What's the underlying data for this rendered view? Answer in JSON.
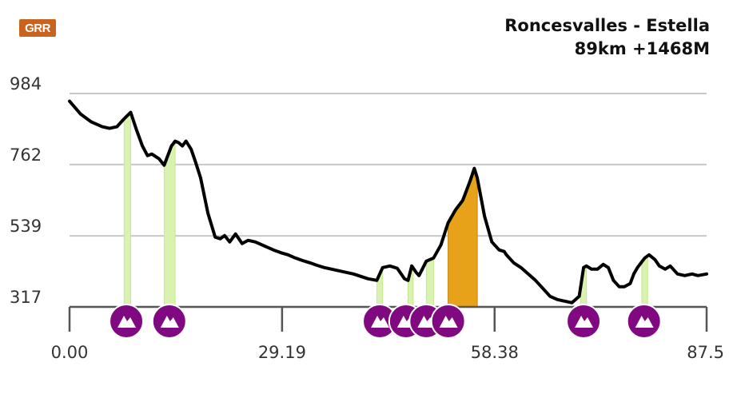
{
  "brand": {
    "logo_text": "GRR"
  },
  "header": {
    "title_line1": "Roncesvalles - Estella",
    "title_line2": "89km +1468M"
  },
  "chart_data": {
    "type": "area",
    "title": "",
    "xlabel": "",
    "ylabel": "",
    "xlim": [
      0,
      87.5
    ],
    "ylim": [
      317,
      984
    ],
    "y_ticks": [
      "317",
      "539",
      "762",
      "984"
    ],
    "x_ticks": [
      "0.00",
      "29.19",
      "58.38",
      "87.5"
    ],
    "grid": "horizontal",
    "profile": {
      "x": [
        0,
        1.5,
        3,
        4.5,
        5.5,
        6.5,
        7.5,
        8.4,
        9.2,
        10,
        10.7,
        11.3,
        12.3,
        13,
        14,
        14.5,
        15,
        15.5,
        16,
        16.7,
        17.3,
        18,
        19,
        20,
        20.7,
        21.3,
        22,
        22.8,
        23.7,
        24.5,
        25.5,
        27,
        28,
        29.2,
        30,
        31,
        32,
        33,
        34,
        35,
        37,
        39,
        41,
        42.2,
        43,
        44,
        45,
        46,
        46.5,
        47,
        47.6,
        48,
        49,
        50,
        51,
        52,
        53,
        54,
        55,
        55.6,
        56,
        57,
        58,
        59,
        59.7,
        60,
        61,
        62,
        63,
        64,
        65,
        66,
        67,
        68,
        69,
        70,
        70.6,
        71,
        71.7,
        72.5,
        73.3,
        74,
        74.7,
        75.5,
        76.2,
        77,
        77.5,
        78,
        78.5,
        79,
        79.6,
        80.4,
        81,
        81.8,
        82.5,
        83.5,
        84.5,
        85.5,
        86.3,
        87.5
      ],
      "y": [
        960,
        920,
        895,
        880,
        875,
        880,
        905,
        925,
        870,
        820,
        790,
        795,
        780,
        760,
        820,
        835,
        830,
        820,
        835,
        810,
        770,
        720,
        610,
        535,
        530,
        540,
        520,
        545,
        515,
        525,
        520,
        505,
        495,
        485,
        480,
        470,
        462,
        455,
        447,
        440,
        430,
        420,
        405,
        400,
        440,
        445,
        438,
        405,
        400,
        445,
        425,
        415,
        460,
        470,
        510,
        580,
        620,
        650,
        710,
        750,
        720,
        600,
        520,
        495,
        490,
        480,
        455,
        440,
        420,
        400,
        375,
        350,
        340,
        335,
        330,
        350,
        440,
        445,
        435,
        435,
        450,
        440,
        400,
        380,
        380,
        390,
        420,
        440,
        455,
        470,
        480,
        465,
        445,
        435,
        445,
        420,
        415,
        420,
        415,
        420
      ]
    },
    "climbs": [
      {
        "start": 7.5,
        "end": 8.4,
        "fill": "#d9f2b0",
        "stroke": "#c6e98c"
      },
      {
        "start": 13,
        "end": 14.5,
        "fill": "#d9f2b0",
        "stroke": "#c6e98c"
      },
      {
        "start": 42.2,
        "end": 43,
        "fill": "#d9f2b0",
        "stroke": "#c6e98c"
      },
      {
        "start": 46.5,
        "end": 47.2,
        "fill": "#d9f2b0",
        "stroke": "#c6e98c"
      },
      {
        "start": 49,
        "end": 50,
        "fill": "#d9f2b0",
        "stroke": "#c6e98c"
      },
      {
        "start": 52,
        "end": 56,
        "fill": "#e8a21a",
        "stroke": "#c9830a"
      },
      {
        "start": 70.2,
        "end": 71,
        "fill": "#d9f2b0",
        "stroke": "#c6e98c"
      },
      {
        "start": 78.6,
        "end": 79.4,
        "fill": "#d9f2b0",
        "stroke": "#c6e98c"
      }
    ],
    "markers": [
      {
        "x": 7.8,
        "icon": "mountain-icon"
      },
      {
        "x": 13.7,
        "icon": "mountain-icon"
      },
      {
        "x": 42.6,
        "icon": "mountain-icon"
      },
      {
        "x": 46.2,
        "icon": "mountain-icon"
      },
      {
        "x": 49.0,
        "icon": "mountain-icon"
      },
      {
        "x": 52.0,
        "icon": "mountain-icon"
      },
      {
        "x": 70.6,
        "icon": "mountain-icon"
      },
      {
        "x": 78.9,
        "icon": "mountain-icon"
      }
    ],
    "colors": {
      "profile_line": "#000000",
      "grid": "#c8c8c8",
      "axis": "#555555",
      "marker_fill": "#800880",
      "marker_icon": "#ffffff"
    }
  }
}
